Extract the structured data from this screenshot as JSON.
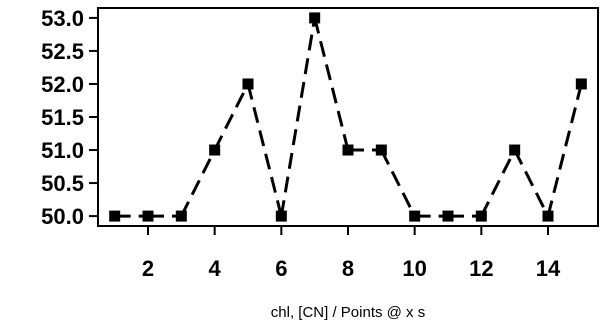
{
  "chart_data": {
    "type": "line",
    "xlabel": "chl, [CN] / Points @ x s",
    "ylabel": "",
    "xlim": [
      0.5,
      15.5
    ],
    "ylim": [
      49.85,
      53.15
    ],
    "x_ticks": [
      2,
      4,
      6,
      8,
      10,
      12,
      14
    ],
    "y_ticks": [
      50.0,
      50.5,
      51.0,
      51.5,
      52.0,
      52.5,
      53.0
    ],
    "x_tick_labels": [
      "2",
      "4",
      "6",
      "8",
      "10",
      "12",
      "14"
    ],
    "y_tick_labels": [
      "50.0",
      "50.5",
      "51.0",
      "51.5",
      "52.0",
      "52.5",
      "53.0"
    ],
    "grid": false,
    "series": [
      {
        "x": [
          1,
          2,
          3,
          4,
          5,
          6,
          7,
          8,
          9,
          10,
          11,
          12,
          13,
          14,
          15
        ],
        "values": [
          50,
          50,
          50,
          51,
          52,
          50,
          53,
          51,
          51,
          50,
          50,
          50,
          51,
          50,
          52
        ],
        "color": "#000000",
        "marker": "square"
      }
    ]
  }
}
